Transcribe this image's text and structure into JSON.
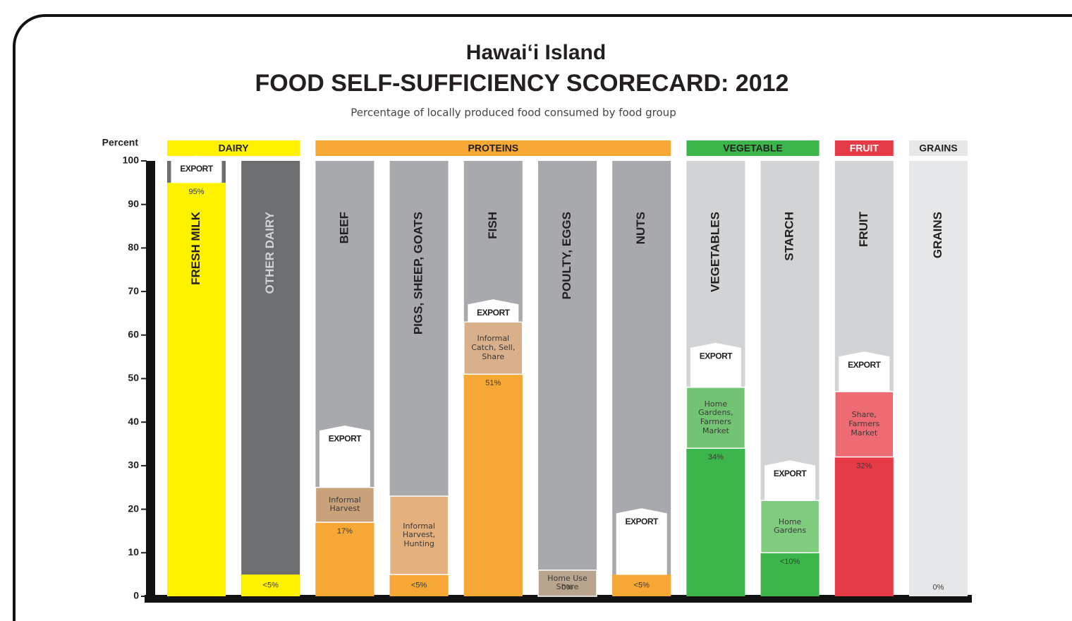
{
  "chart_data": {
    "type": "scorecard",
    "title": [
      "Hawai‘i Island",
      "FOOD SELF-SUFFICIENCY SCORECARD:  2012"
    ],
    "subtitle": "Percentage of locally produced food consumed by food group",
    "ylabel": "Percent",
    "ylim": [
      0,
      100
    ],
    "yticks": [
      0,
      10,
      20,
      30,
      40,
      50,
      60,
      70,
      80,
      90,
      100
    ],
    "groups": [
      {
        "name": "DAIRY",
        "color": "#fff200",
        "text_color": "#231f20",
        "columns": [
          0,
          1
        ]
      },
      {
        "name": "PROTEINS",
        "color": "#f7a733",
        "text_color": "#231f20",
        "columns": [
          2,
          3,
          4,
          5,
          6
        ]
      },
      {
        "name": "VEGETABLE",
        "color": "#3cb54a",
        "text_color": "#231f20",
        "columns": [
          7,
          8
        ]
      },
      {
        "name": "FRUIT",
        "color": "#e63a46",
        "text_color": "#ffffff",
        "columns": [
          9
        ]
      },
      {
        "name": "GRAINS",
        "color": "#e6e7e8",
        "text_color": "#231f20",
        "columns": [
          10
        ]
      }
    ],
    "columns": [
      {
        "name": "FRESH MILK",
        "name_color": "#231f20",
        "background": "#6d6e70",
        "color": "#fff200",
        "value": 95,
        "value_label": "95%",
        "segments": [],
        "export": {
          "label": "EXPORT",
          "value": 5
        }
      },
      {
        "name": "OTHER DAIRY",
        "name_color": "#d1d3d4",
        "background": "#6d6e70",
        "color": "#fff200",
        "value": 5,
        "value_label": "<5%",
        "segments": []
      },
      {
        "name": "BEEF",
        "name_color": "#231f20",
        "background": "#a7a9ac",
        "color": "#f7a733",
        "value": 17,
        "value_label": "17%",
        "segments": [
          {
            "label": "Informal Harvest",
            "value": 8,
            "color": "#c9a27a"
          }
        ],
        "export": {
          "label": "EXPORT",
          "value": 13
        }
      },
      {
        "name": "PIGS, SHEEP, GOATS",
        "name_color": "#231f20",
        "background": "#a7a9ac",
        "color": "#f7a733",
        "value": 5,
        "value_label": "<5%",
        "segments": [
          {
            "label": "Informal Harvest, Hunting",
            "value": 18,
            "color": "#e3b07e"
          }
        ]
      },
      {
        "name": "FISH",
        "name_color": "#231f20",
        "background": "#a7a9ac",
        "color": "#f7a733",
        "value": 51,
        "value_label": "51%",
        "segments": [
          {
            "label": "Informal Catch, Sell, Share",
            "value": 12,
            "color": "#d9b08a"
          }
        ],
        "export": {
          "label": "EXPORT",
          "value": 4
        }
      },
      {
        "name": "POULTY, EGGS",
        "name_color": "#231f20",
        "background": "#a7a9ac",
        "color": "#f7a733",
        "value": 0,
        "value_label": "0%",
        "segments": [
          {
            "label": "Home Use Share",
            "value": 6,
            "color": "#b9a58e"
          }
        ]
      },
      {
        "name": "NUTS",
        "name_color": "#231f20",
        "background": "#a7a9ac",
        "color": "#f7a733",
        "value": 5,
        "value_label": "<5%",
        "segments": [],
        "export": {
          "label": "EXPORT",
          "value": 14
        }
      },
      {
        "name": "VEGETABLES",
        "name_color": "#231f20",
        "background": "#d1d3d4",
        "color": "#3cb54a",
        "value": 34,
        "value_label": "34%",
        "segments": [
          {
            "label": "Home Gardens, Farmers Market",
            "value": 14,
            "color": "#72c472"
          }
        ],
        "export": {
          "label": "EXPORT",
          "value": 9
        }
      },
      {
        "name": "STARCH",
        "name_color": "#231f20",
        "background": "#d1d3d4",
        "color": "#3cb54a",
        "value": 10,
        "value_label": "<10%",
        "segments": [
          {
            "label": "Home Gardens",
            "value": 12,
            "color": "#7fcc7f"
          }
        ],
        "export": {
          "label": "EXPORT",
          "value": 8
        }
      },
      {
        "name": "FRUIT",
        "name_color": "#231f20",
        "background": "#d1d3d4",
        "color": "#e63a46",
        "value": 32,
        "value_label": "32%",
        "segments": [
          {
            "label": "Share, Farmers Market",
            "value": 15,
            "color": "#ee6b73"
          }
        ],
        "export": {
          "label": "EXPORT",
          "value": 8
        }
      },
      {
        "name": "GRAINS",
        "name_color": "#231f20",
        "background": "#e6e7e8",
        "color": "#e6e7e8",
        "value": 0,
        "value_label": "0%",
        "segments": []
      }
    ]
  }
}
